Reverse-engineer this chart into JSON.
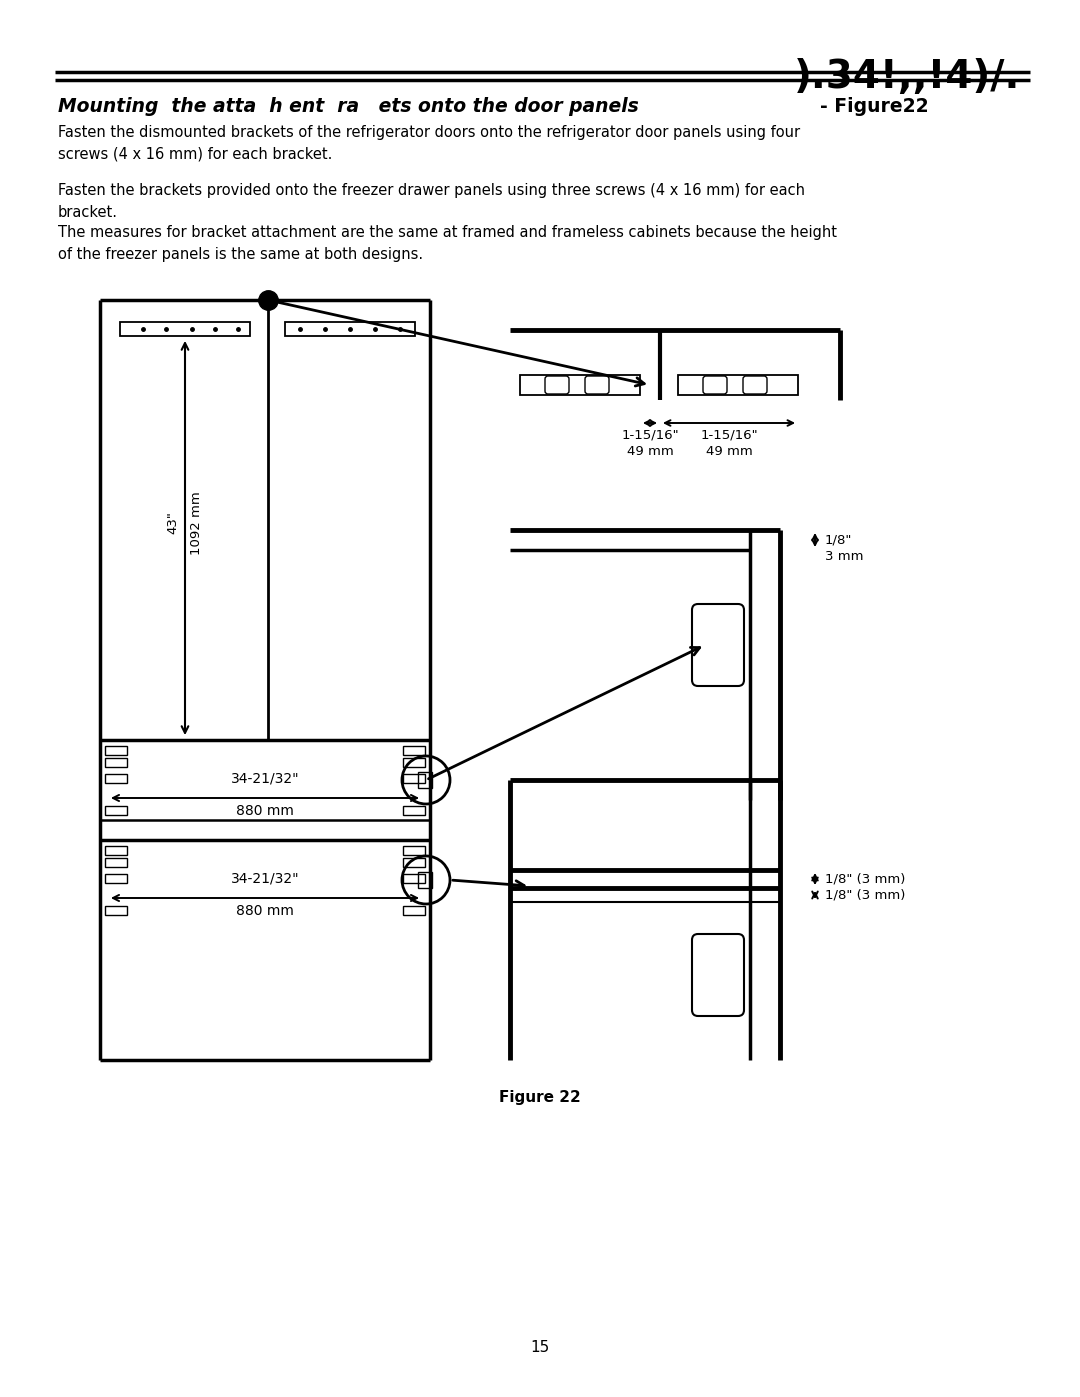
{
  "page_title": ").34!,,!4)/.",
  "section_title": "Mounting  the atta  h ent  ra   ets onto the door panels",
  "figure_label": "- Figure22",
  "para1": "Fasten the dismounted brackets of the refrigerator doors onto the refrigerator door panels using four\nscrews (4 x 16 mm) for each bracket.",
  "para2": "Fasten the brackets provided onto the freezer drawer panels using three screws (4 x 16 mm) for each\nbracket.",
  "para3": "The measures for bracket attachment are the same at framed and frameless cabinets because the height\nof the freezer panels is the same at both designs.",
  "figure_caption": "Figure 22",
  "page_number": "15",
  "dim_43_in": "43\"",
  "dim_43_mm": "1092 mm",
  "dim_880_top": "34-21/32\"",
  "dim_880_top_mm": "880 mm",
  "dim_880_bot": "34-21/32\"",
  "dim_880_bot_mm": "880 mm",
  "dim_49_left": "1-15/16\"",
  "dim_49_left_mm": "49 mm",
  "dim_49_right": "1-15/16\"",
  "dim_49_right_mm": "49 mm",
  "dim_3mm_top": "1/8\"",
  "dim_3mm_top_mm": "3 mm",
  "dim_3mm_mid": "1/8\" (3 mm)",
  "dim_3mm_bot": "1/8\" (3 mm)",
  "bg_color": "#ffffff",
  "line_color": "#000000",
  "text_color": "#000000"
}
